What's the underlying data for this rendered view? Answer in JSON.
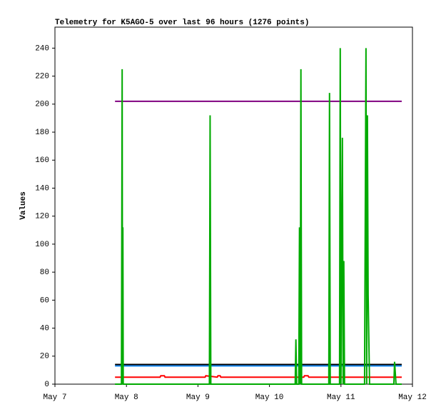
{
  "chart_data": {
    "type": "line",
    "title": "Telemetry for K5AGO-5 over last 96 hours (1276 points)",
    "y_label": "Values",
    "xlim": [
      0,
      5
    ],
    "xticks": [
      {
        "value": 0,
        "label": "May 7"
      },
      {
        "value": 1,
        "label": "May 8"
      },
      {
        "value": 2,
        "label": "May 9"
      },
      {
        "value": 3,
        "label": "May 10"
      },
      {
        "value": 4,
        "label": "May 11"
      },
      {
        "value": 5,
        "label": "May 12"
      }
    ],
    "ylim": [
      0,
      255
    ],
    "yticks": [
      0,
      20,
      40,
      60,
      80,
      100,
      120,
      140,
      160,
      180,
      200,
      220,
      240
    ],
    "series": [
      {
        "color": "#800080",
        "x": [
          0.84,
          4.85
        ],
        "values": [
          202,
          202
        ]
      },
      {
        "color": "#000000",
        "x": [
          0.84,
          4.85
        ],
        "values": [
          14,
          14
        ]
      },
      {
        "color": "#1e90ff",
        "x": [
          0.84,
          4.85
        ],
        "values": [
          13,
          13
        ]
      },
      {
        "color": "#ff0000",
        "x": [
          0.84,
          0.93,
          0.935,
          0.95,
          1.47,
          1.48,
          1.53,
          1.54,
          2.1,
          2.11,
          2.27,
          2.28,
          2.31,
          2.32,
          3.48,
          3.49,
          3.54,
          3.55,
          4.85
        ],
        "values": [
          5,
          5,
          6,
          5,
          5,
          6,
          6,
          5,
          5,
          6,
          5,
          6,
          6,
          5,
          5,
          6,
          6,
          5,
          5
        ]
      },
      {
        "color": "#00aa00",
        "x": [
          0.84,
          0.93,
          0.94,
          0.945,
          0.95,
          0.955,
          2.16,
          2.17,
          2.18,
          3.36,
          3.37,
          3.38,
          3.41,
          3.42,
          3.43,
          3.44,
          3.45,
          3.83,
          3.84,
          3.85,
          3.98,
          3.99,
          4.0,
          4.02,
          4.03,
          4.04,
          4.05,
          4.33,
          4.34,
          4.35,
          4.36,
          4.37,
          4.38,
          4.39,
          4.4,
          4.74,
          4.75,
          4.76,
          4.77,
          4.85
        ],
        "values": [
          0,
          0,
          225,
          0,
          112,
          0,
          0,
          192,
          0,
          0,
          32,
          0,
          0,
          112,
          0,
          225,
          0,
          0,
          208,
          0,
          0,
          240,
          0,
          176,
          0,
          88,
          0,
          0,
          120,
          240,
          0,
          192,
          64,
          32,
          0,
          0,
          16,
          8,
          0,
          0
        ]
      }
    ]
  }
}
